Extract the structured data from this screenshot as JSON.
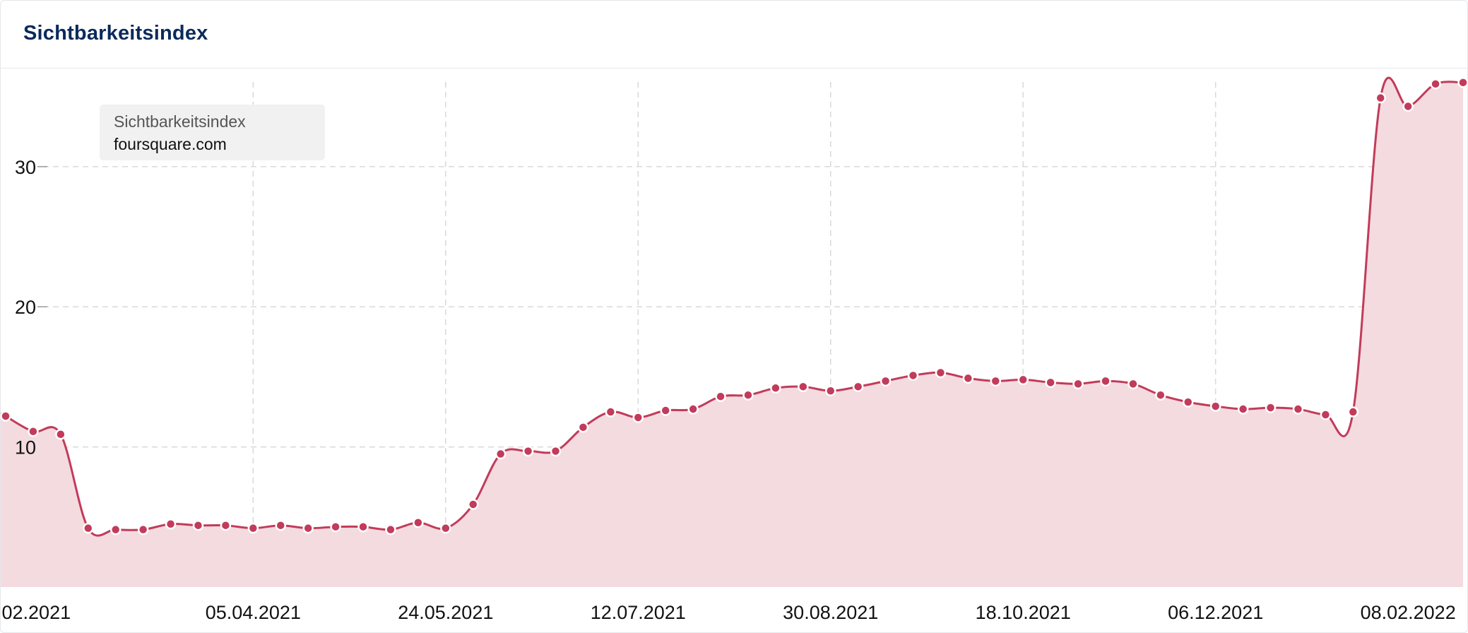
{
  "panel": {
    "title": "Sichtbarkeitsindex"
  },
  "legend": {
    "series_name": "Sichtbarkeitsindex",
    "domain": "foursquare.com"
  },
  "colors": {
    "line": "#c23b5a",
    "fill": "#f4dbe0",
    "grid": "#d9d9d9",
    "title": "#0b2a5b"
  },
  "chart_data": {
    "type": "area",
    "title": "Sichtbarkeitsindex",
    "xlabel": "",
    "ylabel": "",
    "ylim": [
      0,
      37
    ],
    "yticks": [
      10,
      20,
      30
    ],
    "x_tick_labels": [
      ".02.2021",
      "05.04.2021",
      "24.05.2021",
      "12.07.2021",
      "30.08.2021",
      "18.10.2021",
      "06.12.2021",
      "08.02.2022"
    ],
    "grid": true,
    "legend_position": "top-left",
    "series": [
      {
        "name": "foursquare.com",
        "x": [
          "01.02.2021",
          "08.02.2021",
          "15.02.2021",
          "22.02.2021",
          "01.03.2021",
          "08.03.2021",
          "15.03.2021",
          "22.03.2021",
          "29.03.2021",
          "05.04.2021",
          "12.04.2021",
          "19.04.2021",
          "26.04.2021",
          "03.05.2021",
          "10.05.2021",
          "17.05.2021",
          "24.05.2021",
          "31.05.2021",
          "07.06.2021",
          "14.06.2021",
          "21.06.2021",
          "28.06.2021",
          "05.07.2021",
          "12.07.2021",
          "19.07.2021",
          "26.07.2021",
          "02.08.2021",
          "09.08.2021",
          "16.08.2021",
          "23.08.2021",
          "30.08.2021",
          "06.09.2021",
          "13.09.2021",
          "20.09.2021",
          "27.09.2021",
          "04.10.2021",
          "11.10.2021",
          "18.10.2021",
          "25.10.2021",
          "01.11.2021",
          "08.11.2021",
          "15.11.2021",
          "22.11.2021",
          "29.11.2021",
          "06.12.2021",
          "13.12.2021",
          "20.12.2021",
          "27.12.2021",
          "03.01.2022",
          "10.01.2022",
          "17.01.2022",
          "24.01.2022",
          "31.01.2022",
          "07.02.2022"
        ],
        "values": [
          12.2,
          11.1,
          10.9,
          4.2,
          4.1,
          4.1,
          4.5,
          4.4,
          4.4,
          4.2,
          4.4,
          4.2,
          4.3,
          4.3,
          4.1,
          4.6,
          4.2,
          5.9,
          9.5,
          9.7,
          9.7,
          11.4,
          12.5,
          12.1,
          12.6,
          12.7,
          13.6,
          13.7,
          14.2,
          14.3,
          14.0,
          14.3,
          14.7,
          15.1,
          15.3,
          14.9,
          14.7,
          14.8,
          14.6,
          14.5,
          14.7,
          14.5,
          13.7,
          13.2,
          12.9,
          12.7,
          12.8,
          12.7,
          12.3,
          12.5,
          34.9,
          34.3,
          35.9,
          36.0
        ]
      }
    ]
  }
}
